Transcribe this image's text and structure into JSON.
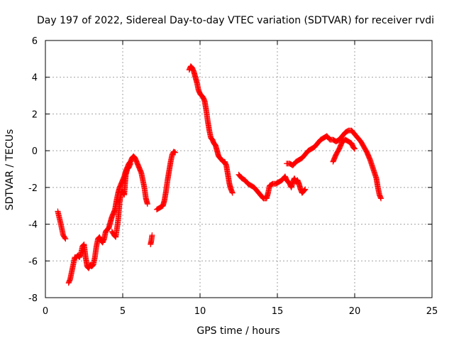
{
  "chart_data": {
    "type": "scatter",
    "title": "Day 197 of 2022, Sidereal Day-to-day VTEC variation (SDTVAR) for receiver rvdi",
    "xlabel": "GPS time / hours",
    "ylabel": "SDTVAR / TECUs",
    "xlim": [
      0,
      25
    ],
    "ylim": [
      -8,
      6
    ],
    "xticks": [
      0,
      5,
      10,
      15,
      20,
      25
    ],
    "yticks": [
      -8,
      -6,
      -4,
      -2,
      0,
      2,
      4,
      6
    ],
    "grid": true,
    "marker": "+",
    "color": "#ff0000",
    "series": [
      {
        "segments": [
          [
            [
              0.8,
              -3.3
            ],
            [
              1.0,
              -4.0
            ],
            [
              1.15,
              -4.6
            ],
            [
              1.3,
              -4.8
            ]
          ],
          [
            [
              1.5,
              -7.2
            ],
            [
              1.6,
              -7.0
            ],
            [
              1.7,
              -6.6
            ],
            [
              1.8,
              -6.2
            ],
            [
              1.9,
              -5.8
            ],
            [
              2.0,
              -5.8
            ],
            [
              2.1,
              -5.7
            ],
            [
              2.2,
              -5.8
            ],
            [
              2.3,
              -5.6
            ],
            [
              2.4,
              -5.2
            ],
            [
              2.5,
              -5.1
            ],
            [
              2.6,
              -5.8
            ],
            [
              2.7,
              -6.3
            ],
            [
              2.8,
              -6.4
            ],
            [
              2.9,
              -6.2
            ],
            [
              3.0,
              -6.3
            ],
            [
              3.1,
              -6.2
            ],
            [
              3.2,
              -5.8
            ],
            [
              3.3,
              -5.2
            ],
            [
              3.4,
              -4.8
            ],
            [
              3.5,
              -4.7
            ],
            [
              3.6,
              -4.9
            ],
            [
              3.7,
              -5.0
            ],
            [
              3.8,
              -4.8
            ],
            [
              3.9,
              -4.4
            ],
            [
              4.0,
              -4.3
            ],
            [
              4.1,
              -4.2
            ],
            [
              4.2,
              -3.9
            ],
            [
              4.3,
              -3.6
            ],
            [
              4.4,
              -3.4
            ],
            [
              4.5,
              -3.2
            ],
            [
              4.6,
              -2.7
            ],
            [
              4.7,
              -2.3
            ],
            [
              4.8,
              -2.0
            ],
            [
              4.9,
              -1.8
            ],
            [
              5.0,
              -1.6
            ],
            [
              5.1,
              -1.4
            ],
            [
              5.2,
              -1.1
            ],
            [
              5.3,
              -0.9
            ],
            [
              5.4,
              -0.7
            ],
            [
              5.5,
              -0.6
            ],
            [
              5.6,
              -0.4
            ],
            [
              5.7,
              -0.3
            ],
            [
              5.8,
              -0.4
            ],
            [
              5.9,
              -0.6
            ],
            [
              6.0,
              -0.8
            ],
            [
              6.1,
              -1.0
            ],
            [
              6.2,
              -1.2
            ],
            [
              6.3,
              -1.6
            ],
            [
              6.4,
              -2.0
            ],
            [
              6.5,
              -2.6
            ],
            [
              6.6,
              -2.9
            ]
          ],
          [
            [
              4.3,
              -4.4
            ],
            [
              4.45,
              -4.6
            ],
            [
              4.55,
              -4.7
            ],
            [
              4.6,
              -4.4
            ],
            [
              4.7,
              -3.8
            ],
            [
              4.8,
              -2.8
            ],
            [
              4.9,
              -2.3
            ],
            [
              5.0,
              -2.2
            ],
            [
              5.1,
              -2.4
            ],
            [
              5.15,
              -1.8
            ],
            [
              5.2,
              -1.3
            ],
            [
              5.3,
              -1.0
            ],
            [
              5.4,
              -0.9
            ],
            [
              5.5,
              -0.7
            ]
          ],
          [
            [
              6.8,
              -5.1
            ],
            [
              6.85,
              -4.9
            ],
            [
              6.9,
              -4.6
            ]
          ],
          [
            [
              7.2,
              -3.2
            ],
            [
              7.4,
              -3.1
            ],
            [
              7.6,
              -3.0
            ],
            [
              7.7,
              -2.7
            ],
            [
              7.8,
              -2.2
            ],
            [
              7.9,
              -1.6
            ],
            [
              8.0,
              -1.1
            ],
            [
              8.1,
              -0.6
            ],
            [
              8.2,
              -0.2
            ],
            [
              8.3,
              -0.05
            ],
            [
              8.4,
              -0.1
            ]
          ],
          [
            [
              9.3,
              4.4
            ],
            [
              9.4,
              4.6
            ],
            [
              9.5,
              4.5
            ],
            [
              9.6,
              4.3
            ],
            [
              9.7,
              4.0
            ],
            [
              9.8,
              3.7
            ],
            [
              9.9,
              3.3
            ],
            [
              10.0,
              3.1
            ],
            [
              10.1,
              3.0
            ],
            [
              10.2,
              2.9
            ],
            [
              10.3,
              2.7
            ],
            [
              10.4,
              2.2
            ],
            [
              10.5,
              1.6
            ],
            [
              10.6,
              1.1
            ],
            [
              10.7,
              0.7
            ],
            [
              10.8,
              0.6
            ],
            [
              10.9,
              0.4
            ],
            [
              11.0,
              0.3
            ],
            [
              11.1,
              0.0
            ],
            [
              11.2,
              -0.3
            ],
            [
              11.3,
              -0.4
            ],
            [
              11.4,
              -0.5
            ],
            [
              11.5,
              -0.6
            ],
            [
              11.6,
              -0.6
            ],
            [
              11.7,
              -0.8
            ],
            [
              11.8,
              -1.3
            ],
            [
              11.9,
              -1.8
            ],
            [
              12.0,
              -2.1
            ],
            [
              12.1,
              -2.3
            ]
          ],
          [
            [
              12.5,
              -1.3
            ],
            [
              12.7,
              -1.5
            ],
            [
              12.9,
              -1.6
            ],
            [
              13.1,
              -1.8
            ],
            [
              13.3,
              -1.9
            ],
            [
              13.5,
              -2.0
            ],
            [
              13.7,
              -2.2
            ],
            [
              13.9,
              -2.4
            ],
            [
              14.1,
              -2.6
            ],
            [
              14.3,
              -2.6
            ],
            [
              14.4,
              -2.3
            ],
            [
              14.5,
              -1.9
            ],
            [
              14.7,
              -1.8
            ],
            [
              14.9,
              -1.8
            ],
            [
              15.1,
              -1.7
            ],
            [
              15.3,
              -1.6
            ],
            [
              15.5,
              -1.4
            ],
            [
              15.6,
              -1.6
            ],
            [
              15.8,
              -1.8
            ],
            [
              15.9,
              -2.0
            ],
            [
              16.0,
              -1.7
            ],
            [
              16.1,
              -1.5
            ],
            [
              16.2,
              -1.7
            ],
            [
              16.3,
              -1.6
            ],
            [
              16.4,
              -1.8
            ],
            [
              16.5,
              -2.1
            ],
            [
              16.6,
              -2.3
            ],
            [
              16.7,
              -2.2
            ],
            [
              16.8,
              -2.1
            ]
          ],
          [
            [
              15.6,
              -0.7
            ],
            [
              15.8,
              -0.7
            ],
            [
              16.0,
              -0.8
            ],
            [
              16.2,
              -0.6
            ],
            [
              16.4,
              -0.5
            ],
            [
              16.6,
              -0.4
            ],
            [
              16.8,
              -0.2
            ],
            [
              17.0,
              0.0
            ],
            [
              17.2,
              0.1
            ],
            [
              17.4,
              0.2
            ],
            [
              17.6,
              0.4
            ],
            [
              17.8,
              0.6
            ],
            [
              18.0,
              0.7
            ],
            [
              18.2,
              0.8
            ],
            [
              18.4,
              0.6
            ],
            [
              18.6,
              0.6
            ],
            [
              18.8,
              0.5
            ],
            [
              19.0,
              0.6
            ],
            [
              19.2,
              0.8
            ],
            [
              19.4,
              1.0
            ],
            [
              19.6,
              1.1
            ],
            [
              19.8,
              1.1
            ],
            [
              20.0,
              0.9
            ],
            [
              20.2,
              0.7
            ],
            [
              20.4,
              0.5
            ],
            [
              20.6,
              0.2
            ],
            [
              20.8,
              -0.1
            ],
            [
              21.0,
              -0.5
            ],
            [
              21.2,
              -1.0
            ],
            [
              21.4,
              -1.5
            ],
            [
              21.5,
              -2.0
            ],
            [
              21.6,
              -2.4
            ],
            [
              21.7,
              -2.6
            ]
          ],
          [
            [
              18.6,
              -0.6
            ],
            [
              18.8,
              -0.2
            ],
            [
              19.0,
              0.1
            ],
            [
              19.2,
              0.5
            ],
            [
              19.4,
              0.6
            ],
            [
              19.6,
              0.5
            ],
            [
              19.8,
              0.4
            ],
            [
              19.9,
              0.2
            ],
            [
              20.0,
              0.1
            ]
          ]
        ]
      }
    ]
  }
}
